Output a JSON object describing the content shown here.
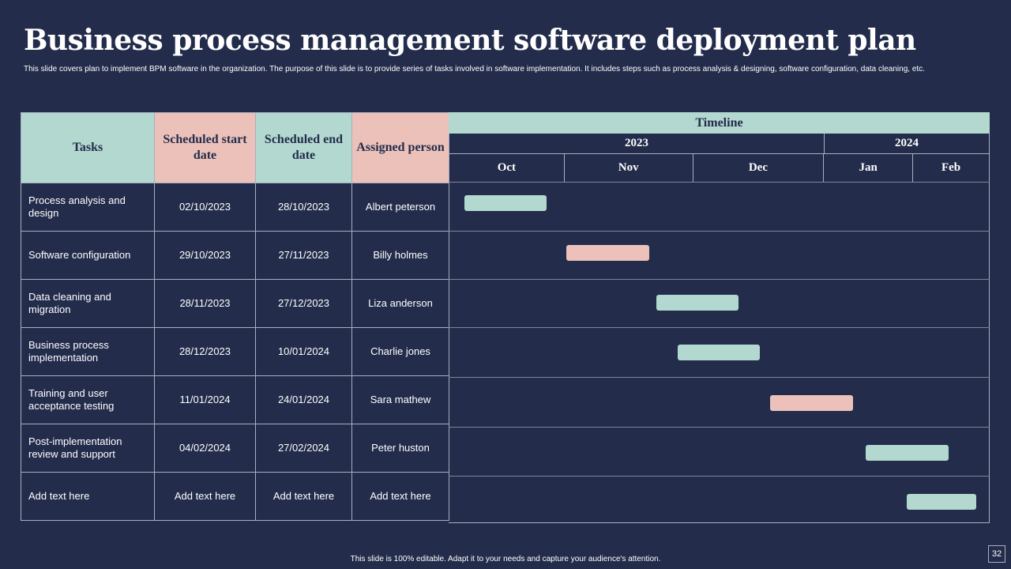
{
  "title": "Business process management software deployment plan",
  "subtitle": "This slide covers plan to implement  BPM  software in the organization. The purpose of this slide is to provide series of tasks involved in software implementation.  It includes steps such as process analysis & designing, software configuration, data cleaning, etc.",
  "table": {
    "headers": {
      "tasks": "Tasks",
      "start": "Scheduled start date",
      "end": "Scheduled end date",
      "person": "Assigned person"
    },
    "rows": [
      {
        "task": "Process analysis and design",
        "start": "02/10/2023",
        "end": "28/10/2023",
        "person": "Albert peterson"
      },
      {
        "task": "Software  configuration",
        "start": "29/10/2023",
        "end": "27/11/2023",
        "person": "Billy holmes"
      },
      {
        "task": "Data cleaning and migration",
        "start": "28/11/2023",
        "end": "27/12/2023",
        "person": "Liza anderson"
      },
      {
        "task": "Business process implementation",
        "start": "28/12/2023",
        "end": "10/01/2024",
        "person": "Charlie  jones"
      },
      {
        "task": "Training  and user acceptance testing",
        "start": "11/01/2024",
        "end": "24/01/2024",
        "person": "Sara mathew"
      },
      {
        "task": "Post-implementation review  and support",
        "start": "04/02/2024",
        "end": "27/02/2024",
        "person": "Peter huston"
      },
      {
        "task": "Add text here",
        "start": "Add text here",
        "end": "Add text here",
        "person": "Add text here"
      }
    ]
  },
  "timeline": {
    "title": "Timeline",
    "years": [
      "2023",
      "2024"
    ],
    "months": [
      "Oct",
      "Nov",
      "Dec",
      "Jan",
      "Feb"
    ],
    "bar_colors": [
      "mint",
      "pink",
      "mint",
      "mint",
      "pink",
      "mint",
      "mint"
    ]
  },
  "colors": {
    "background": "#232c4b",
    "mint": "#b2d8d0",
    "pink": "#ebc1ba"
  },
  "footer": "This slide is 100% editable.  Adapt it to your needs and capture your audience's attention.",
  "page_number": "32"
}
